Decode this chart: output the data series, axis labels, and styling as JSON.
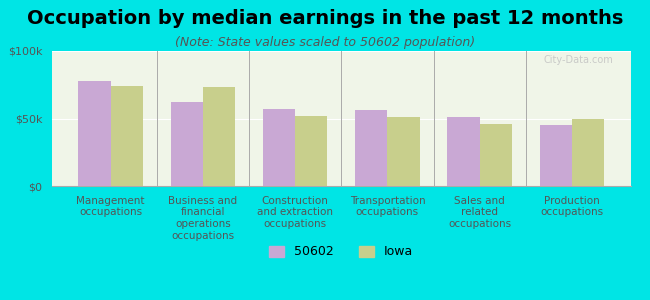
{
  "title": "Occupation by median earnings in the past 12 months",
  "subtitle": "(Note: State values scaled to 50602 population)",
  "categories": [
    "Management\noccupations",
    "Business and\nfinancial\noperations\noccupations",
    "Construction\nand extraction\noccupations",
    "Transportation\noccupations",
    "Sales and\nrelated\noccupations",
    "Production\noccupations"
  ],
  "values_50602": [
    78000,
    62000,
    57000,
    56000,
    51000,
    45000
  ],
  "values_iowa": [
    74000,
    73000,
    52000,
    51000,
    46000,
    50000
  ],
  "color_50602": "#c9a8d4",
  "color_iowa": "#c8cf8c",
  "background_color": "#00e5e5",
  "plot_bg_color": "#f0f5e8",
  "ylim": [
    0,
    100000
  ],
  "yticks": [
    0,
    50000,
    100000
  ],
  "ytick_labels": [
    "$0",
    "$50k",
    "$100k"
  ],
  "legend_labels": [
    "50602",
    "Iowa"
  ],
  "bar_width": 0.35,
  "title_fontsize": 14,
  "subtitle_fontsize": 9,
  "tick_fontsize": 8,
  "legend_fontsize": 9
}
